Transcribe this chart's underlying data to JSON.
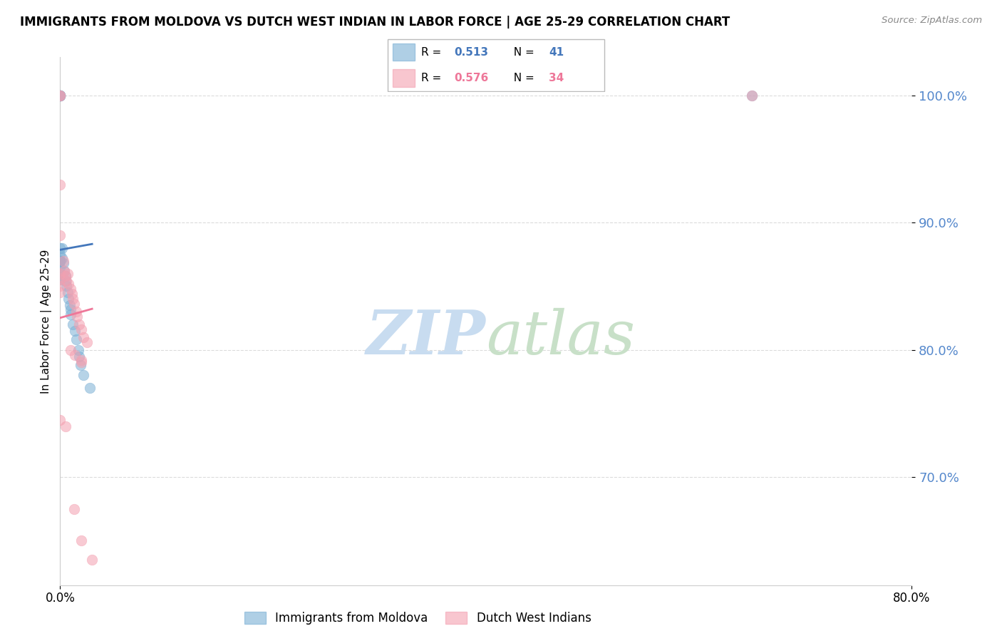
{
  "title": "IMMIGRANTS FROM MOLDOVA VS DUTCH WEST INDIAN IN LABOR FORCE | AGE 25-29 CORRELATION CHART",
  "source": "Source: ZipAtlas.com",
  "ylabel": "In Labor Force | Age 25-29",
  "ytick_values": [
    0.7,
    0.8,
    0.9,
    1.0
  ],
  "ytick_labels": [
    "70.0%",
    "80.0%",
    "90.0%",
    "100.0%"
  ],
  "xtick_values": [
    0.0,
    0.8
  ],
  "xtick_labels": [
    "0.0%",
    "80.0%"
  ],
  "xlim": [
    0.0,
    0.8
  ],
  "ylim": [
    0.615,
    1.03
  ],
  "blue_color": "#7BAFD4",
  "pink_color": "#F4A0B0",
  "blue_line_color": "#4477BB",
  "pink_line_color": "#EE7799",
  "yaxis_color": "#5588CC",
  "grid_color": "#CCCCCC",
  "watermark_zip_color": "#C8DCF0",
  "watermark_atlas_color": "#C8E0C8",
  "blue_x": [
    0.0,
    0.0,
    0.0,
    0.0,
    0.0,
    0.0,
    0.0,
    0.0,
    0.0,
    0.0,
    0.0,
    0.0,
    0.0,
    0.0,
    0.0,
    0.0,
    0.0,
    0.0,
    0.0,
    0.0,
    0.002,
    0.002,
    0.003,
    0.004,
    0.005,
    0.005,
    0.006,
    0.007,
    0.008,
    0.009,
    0.01,
    0.01,
    0.012,
    0.014,
    0.015,
    0.017,
    0.018,
    0.019,
    0.022,
    0.028,
    0.65
  ],
  "blue_y": [
    1.0,
    1.0,
    1.0,
    1.0,
    1.0,
    1.0,
    1.0,
    1.0,
    1.0,
    0.88,
    0.875,
    0.87,
    0.87,
    0.87,
    0.87,
    0.87,
    0.87,
    0.865,
    0.86,
    0.855,
    0.88,
    0.872,
    0.868,
    0.862,
    0.858,
    0.854,
    0.85,
    0.845,
    0.84,
    0.835,
    0.832,
    0.828,
    0.82,
    0.815,
    0.808,
    0.8,
    0.795,
    0.788,
    0.78,
    0.77,
    1.0
  ],
  "pink_x": [
    0.0,
    0.0,
    0.0,
    0.0,
    0.0,
    0.0,
    0.0,
    0.0,
    0.003,
    0.004,
    0.005,
    0.006,
    0.007,
    0.008,
    0.01,
    0.011,
    0.012,
    0.013,
    0.015,
    0.016,
    0.018,
    0.02,
    0.022,
    0.025,
    0.01,
    0.014,
    0.02,
    0.65,
    0.0,
    0.005,
    0.013,
    0.02,
    0.03,
    0.02
  ],
  "pink_y": [
    1.0,
    1.0,
    0.93,
    0.89,
    0.86,
    0.855,
    0.85,
    0.845,
    0.87,
    0.862,
    0.858,
    0.854,
    0.86,
    0.852,
    0.848,
    0.844,
    0.84,
    0.836,
    0.83,
    0.826,
    0.82,
    0.816,
    0.81,
    0.806,
    0.8,
    0.796,
    0.792,
    1.0,
    0.745,
    0.74,
    0.675,
    0.65,
    0.635,
    0.79
  ],
  "legend_R1": "0.513",
  "legend_N1": "41",
  "legend_R2": "0.576",
  "legend_N2": "34",
  "bottom_legend1": "Immigrants from Moldova",
  "bottom_legend2": "Dutch West Indians"
}
